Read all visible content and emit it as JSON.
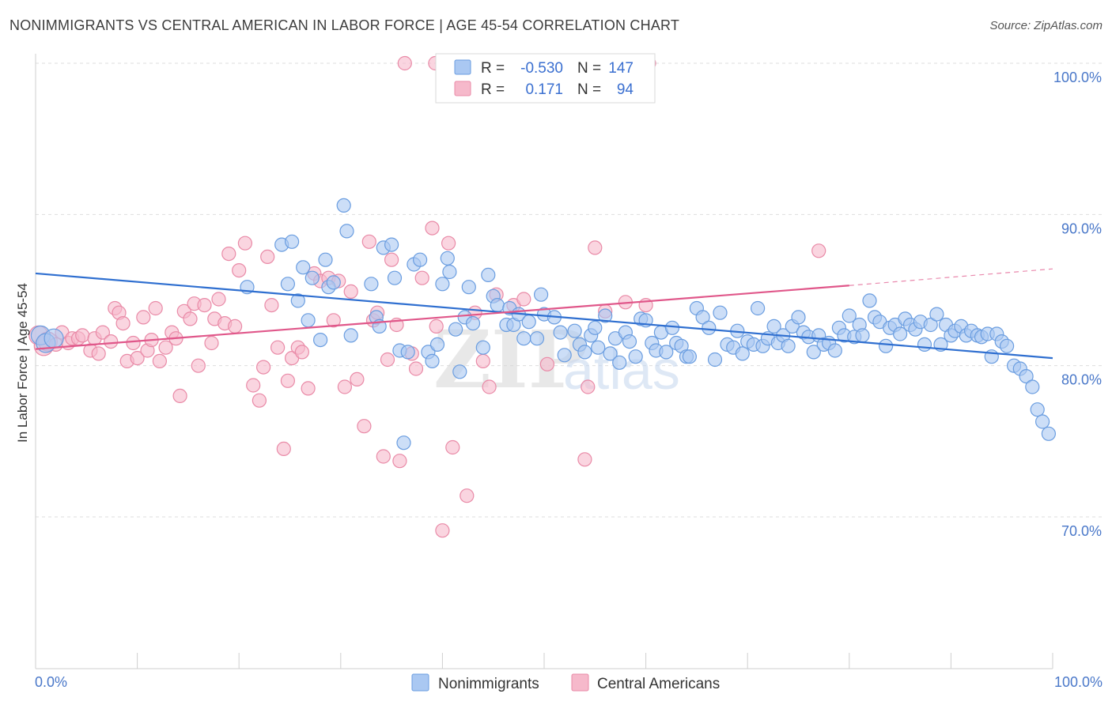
{
  "title": "NONIMMIGRANTS VS CENTRAL AMERICAN IN LABOR FORCE | AGE 45-54 CORRELATION CHART",
  "source": "Source: ZipAtlas.com",
  "watermark": {
    "zip": "ZIP",
    "atlas": "atlas"
  },
  "legend": {
    "rows": [
      {
        "r_label": "R =",
        "r_value": "-0.530",
        "n_label": "N =",
        "n_value": "147",
        "color": "#aac8f2",
        "stroke": "#6a9de0"
      },
      {
        "r_label": "R =",
        "r_value": "0.171",
        "n_label": "N =",
        "n_value": "94",
        "color": "#f6b9cb",
        "stroke": "#e98aa7"
      }
    ]
  },
  "bottom_legend": [
    {
      "label": "Nonimmigrants",
      "color": "#aac8f2",
      "stroke": "#6a9de0"
    },
    {
      "label": "Central Americans",
      "color": "#f6b9cb",
      "stroke": "#e98aa7"
    }
  ],
  "chart_data": {
    "type": "scatter",
    "title": "NONIMMIGRANTS VS CENTRAL AMERICAN IN LABOR FORCE | AGE 45-54 CORRELATION CHART",
    "xlabel": "",
    "ylabel": "In Labor Force | Age 45-54",
    "xlim": [
      0,
      100
    ],
    "ylim": [
      61,
      102
    ],
    "y_ticks": [
      {
        "value": 100,
        "label": "100.0%"
      },
      {
        "value": 90,
        "label": "90.0%"
      },
      {
        "value": 80,
        "label": "80.0%"
      },
      {
        "value": 70,
        "label": "70.0%"
      }
    ],
    "x_tick_labels": [
      {
        "value": 0,
        "label": "0.0%"
      },
      {
        "value": 100,
        "label": "100.0%"
      }
    ],
    "grid": true,
    "series": [
      {
        "name": "Nonimmigrants",
        "color": "#aac8f2",
        "stroke": "#6a9de0",
        "trend": {
          "x0": 0,
          "y0": 86.1,
          "x1": 100,
          "y1": 80.5,
          "color": "#2f6fd0"
        },
        "points": [
          [
            0.5,
            82.0
          ],
          [
            1.0,
            81.5
          ],
          [
            1.8,
            81.8
          ],
          [
            20.8,
            85.2
          ],
          [
            24.2,
            88.0
          ],
          [
            24.8,
            85.4
          ],
          [
            25.2,
            88.2
          ],
          [
            25.8,
            84.3
          ],
          [
            26.3,
            86.5
          ],
          [
            26.8,
            83.0
          ],
          [
            27.2,
            85.8
          ],
          [
            28.0,
            81.7
          ],
          [
            28.5,
            87.0
          ],
          [
            28.8,
            85.2
          ],
          [
            29.3,
            85.5
          ],
          [
            30.3,
            90.6
          ],
          [
            30.6,
            88.9
          ],
          [
            31.0,
            82.0
          ],
          [
            33.0,
            85.4
          ],
          [
            33.5,
            83.2
          ],
          [
            33.8,
            82.6
          ],
          [
            34.2,
            87.8
          ],
          [
            35.0,
            88.0
          ],
          [
            35.3,
            85.8
          ],
          [
            35.8,
            81.0
          ],
          [
            36.2,
            74.9
          ],
          [
            36.6,
            80.9
          ],
          [
            37.2,
            86.7
          ],
          [
            37.8,
            87.0
          ],
          [
            38.6,
            80.9
          ],
          [
            39.0,
            80.3
          ],
          [
            39.5,
            81.4
          ],
          [
            40.0,
            85.4
          ],
          [
            40.5,
            87.1
          ],
          [
            40.7,
            86.2
          ],
          [
            41.3,
            82.4
          ],
          [
            41.7,
            79.6
          ],
          [
            42.2,
            83.2
          ],
          [
            42.6,
            85.2
          ],
          [
            43.0,
            82.8
          ],
          [
            44.0,
            81.2
          ],
          [
            44.5,
            86.0
          ],
          [
            45.0,
            84.6
          ],
          [
            45.4,
            84.0
          ],
          [
            46.3,
            82.7
          ],
          [
            46.6,
            83.8
          ],
          [
            47.0,
            82.7
          ],
          [
            47.5,
            83.4
          ],
          [
            48.0,
            81.8
          ],
          [
            48.5,
            82.9
          ],
          [
            49.3,
            81.8
          ],
          [
            49.7,
            84.7
          ],
          [
            50.0,
            83.4
          ],
          [
            51.0,
            83.2
          ],
          [
            51.6,
            82.2
          ],
          [
            52.0,
            80.7
          ],
          [
            53.0,
            82.3
          ],
          [
            53.5,
            81.4
          ],
          [
            54.0,
            80.9
          ],
          [
            54.6,
            82.0
          ],
          [
            55.0,
            82.5
          ],
          [
            55.3,
            81.2
          ],
          [
            56.0,
            83.3
          ],
          [
            56.5,
            80.8
          ],
          [
            57.0,
            81.8
          ],
          [
            57.4,
            80.2
          ],
          [
            58.0,
            82.2
          ],
          [
            58.4,
            81.6
          ],
          [
            59.0,
            80.6
          ],
          [
            59.5,
            83.1
          ],
          [
            60.0,
            83.0
          ],
          [
            60.6,
            81.5
          ],
          [
            61.0,
            81.0
          ],
          [
            61.5,
            82.2
          ],
          [
            62.0,
            80.9
          ],
          [
            62.6,
            82.5
          ],
          [
            63.0,
            81.5
          ],
          [
            63.5,
            81.3
          ],
          [
            64.0,
            80.6
          ],
          [
            64.3,
            80.6
          ],
          [
            65.0,
            83.8
          ],
          [
            65.6,
            83.2
          ],
          [
            66.2,
            82.5
          ],
          [
            66.8,
            80.4
          ],
          [
            67.3,
            83.5
          ],
          [
            68.0,
            81.4
          ],
          [
            68.6,
            81.2
          ],
          [
            69.0,
            82.3
          ],
          [
            69.5,
            80.8
          ],
          [
            70.0,
            81.6
          ],
          [
            70.6,
            81.4
          ],
          [
            71.0,
            83.8
          ],
          [
            71.5,
            81.3
          ],
          [
            72.0,
            81.8
          ],
          [
            72.6,
            82.6
          ],
          [
            73.0,
            81.5
          ],
          [
            73.5,
            82.0
          ],
          [
            74.0,
            81.3
          ],
          [
            74.4,
            82.6
          ],
          [
            75.0,
            83.2
          ],
          [
            75.5,
            82.2
          ],
          [
            76.0,
            81.9
          ],
          [
            76.5,
            80.9
          ],
          [
            77.0,
            82.0
          ],
          [
            77.5,
            81.4
          ],
          [
            78.0,
            81.5
          ],
          [
            78.6,
            81.0
          ],
          [
            79.0,
            82.5
          ],
          [
            79.5,
            82.0
          ],
          [
            80.0,
            83.3
          ],
          [
            80.5,
            81.9
          ],
          [
            81.0,
            82.7
          ],
          [
            81.3,
            82.0
          ],
          [
            82.0,
            84.3
          ],
          [
            82.5,
            83.2
          ],
          [
            83.0,
            82.9
          ],
          [
            83.6,
            81.3
          ],
          [
            84.0,
            82.5
          ],
          [
            84.5,
            82.7
          ],
          [
            85.0,
            82.1
          ],
          [
            85.5,
            83.1
          ],
          [
            86.0,
            82.7
          ],
          [
            86.5,
            82.4
          ],
          [
            87.0,
            82.9
          ],
          [
            87.4,
            81.4
          ],
          [
            88.0,
            82.7
          ],
          [
            88.6,
            83.4
          ],
          [
            89.0,
            81.4
          ],
          [
            89.5,
            82.7
          ],
          [
            90.0,
            82.0
          ],
          [
            90.4,
            82.3
          ],
          [
            91.0,
            82.6
          ],
          [
            91.5,
            82.0
          ],
          [
            92.0,
            82.3
          ],
          [
            92.6,
            82.0
          ],
          [
            93.0,
            81.9
          ],
          [
            93.6,
            82.1
          ],
          [
            94.0,
            80.6
          ],
          [
            94.5,
            82.1
          ],
          [
            95.0,
            81.6
          ],
          [
            95.5,
            81.3
          ],
          [
            96.2,
            80.0
          ],
          [
            96.8,
            79.8
          ],
          [
            97.4,
            79.3
          ],
          [
            98.0,
            78.6
          ],
          [
            98.5,
            77.1
          ],
          [
            99.0,
            76.3
          ],
          [
            99.6,
            75.5
          ]
        ]
      },
      {
        "name": "Central Americans",
        "color": "#f6b9cb",
        "stroke": "#e98aa7",
        "trend": {
          "x0": 0,
          "y0": 81.1,
          "x1": 80,
          "y1": 85.3,
          "dash_x1": 100,
          "dash_y1": 86.4,
          "color": "#e0578a"
        },
        "points": [
          [
            0.3,
            82.0
          ],
          [
            0.8,
            81.3
          ],
          [
            1.2,
            81.6
          ],
          [
            2.0,
            81.4
          ],
          [
            2.6,
            82.2
          ],
          [
            3.2,
            81.5
          ],
          [
            3.6,
            81.8
          ],
          [
            4.2,
            81.8
          ],
          [
            4.6,
            82.0
          ],
          [
            5.4,
            81.0
          ],
          [
            5.8,
            81.8
          ],
          [
            6.2,
            80.8
          ],
          [
            6.6,
            82.2
          ],
          [
            7.4,
            81.6
          ],
          [
            7.8,
            83.8
          ],
          [
            8.2,
            83.5
          ],
          [
            8.6,
            82.8
          ],
          [
            9.0,
            80.3
          ],
          [
            9.6,
            81.5
          ],
          [
            10.0,
            80.5
          ],
          [
            10.6,
            83.2
          ],
          [
            11.0,
            81.0
          ],
          [
            11.4,
            81.7
          ],
          [
            11.8,
            83.8
          ],
          [
            12.2,
            80.3
          ],
          [
            12.8,
            81.2
          ],
          [
            13.4,
            82.2
          ],
          [
            13.8,
            81.8
          ],
          [
            14.2,
            78.0
          ],
          [
            14.6,
            83.6
          ],
          [
            15.2,
            83.1
          ],
          [
            15.6,
            84.1
          ],
          [
            16.0,
            80.0
          ],
          [
            16.6,
            84.0
          ],
          [
            17.3,
            81.5
          ],
          [
            17.6,
            83.1
          ],
          [
            18.0,
            84.4
          ],
          [
            18.6,
            82.8
          ],
          [
            19.0,
            87.4
          ],
          [
            19.6,
            82.6
          ],
          [
            20.0,
            86.3
          ],
          [
            20.6,
            88.1
          ],
          [
            21.4,
            78.7
          ],
          [
            22.0,
            77.7
          ],
          [
            22.4,
            79.9
          ],
          [
            22.8,
            87.2
          ],
          [
            23.2,
            84.0
          ],
          [
            23.8,
            81.2
          ],
          [
            24.4,
            74.5
          ],
          [
            24.8,
            79.0
          ],
          [
            25.2,
            80.5
          ],
          [
            25.8,
            81.2
          ],
          [
            26.2,
            80.9
          ],
          [
            26.8,
            78.5
          ],
          [
            27.4,
            86.1
          ],
          [
            28.0,
            85.6
          ],
          [
            28.8,
            85.8
          ],
          [
            29.3,
            83.0
          ],
          [
            29.8,
            85.6
          ],
          [
            30.4,
            78.6
          ],
          [
            31.0,
            84.9
          ],
          [
            31.6,
            79.1
          ],
          [
            32.3,
            76.0
          ],
          [
            32.8,
            88.2
          ],
          [
            33.2,
            83.0
          ],
          [
            33.6,
            83.5
          ],
          [
            34.2,
            74.0
          ],
          [
            34.6,
            80.4
          ],
          [
            35.0,
            87.0
          ],
          [
            35.5,
            82.7
          ],
          [
            35.8,
            73.7
          ],
          [
            37.0,
            80.8
          ],
          [
            37.4,
            79.8
          ],
          [
            38.0,
            85.8
          ],
          [
            39.0,
            89.1
          ],
          [
            39.4,
            82.6
          ],
          [
            40.0,
            69.1
          ],
          [
            40.6,
            88.1
          ],
          [
            41.0,
            74.6
          ],
          [
            42.4,
            71.4
          ],
          [
            43.2,
            83.5
          ],
          [
            44.0,
            80.3
          ],
          [
            44.6,
            78.6
          ],
          [
            45.3,
            84.7
          ],
          [
            47.0,
            84.0
          ],
          [
            48.0,
            84.4
          ],
          [
            50.3,
            80.1
          ],
          [
            54.0,
            73.8
          ],
          [
            54.3,
            78.6
          ],
          [
            55.0,
            87.8
          ],
          [
            56.0,
            83.6
          ],
          [
            58.0,
            84.2
          ],
          [
            60.0,
            84.0
          ],
          [
            77.0,
            87.6
          ],
          [
            36.3,
            100.0
          ],
          [
            39.3,
            100.0
          ],
          [
            60.3,
            100.0
          ]
        ]
      }
    ]
  }
}
